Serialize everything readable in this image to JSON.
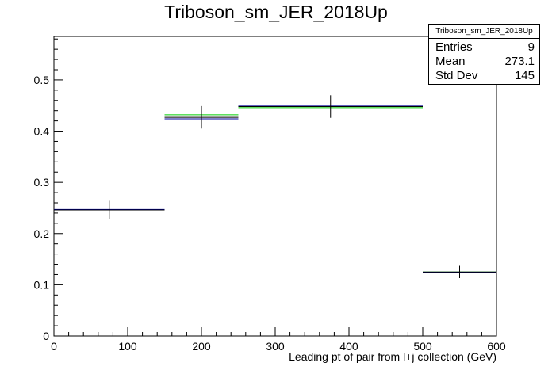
{
  "chart_data": {
    "type": "histogram",
    "title": "Triboson_sm_JER_2018Up",
    "xlabel": "Leading pt of pair from l+j collection (GeV)",
    "ylabel": "",
    "xlim": [
      0,
      600
    ],
    "ylim": [
      0,
      0.585
    ],
    "xticks": [
      0,
      100,
      200,
      300,
      400,
      500,
      600
    ],
    "yticks": [
      0,
      0.1,
      0.2,
      0.3,
      0.4,
      0.5
    ],
    "grid": false,
    "bins": [
      {
        "low": 0,
        "high": 150,
        "center": 75,
        "value": 0.246,
        "err": 0.018
      },
      {
        "low": 150,
        "high": 250,
        "center": 200,
        "value": 0.427,
        "err": 0.022
      },
      {
        "low": 250,
        "high": 500,
        "center": 375,
        "value": 0.448,
        "err": 0.022
      },
      {
        "low": 500,
        "high": 600,
        "center": 550,
        "value": 0.125,
        "err": 0.012
      }
    ],
    "variations": [
      {
        "color": "#00cc00",
        "values": [
          0.246,
          0.432,
          0.446,
          0.125
        ]
      },
      {
        "color": "#000099",
        "values": [
          0.247,
          0.424,
          0.449,
          0.124
        ]
      }
    ],
    "stats": {
      "name": "Triboson_sm_JER_2018Up",
      "rows": [
        {
          "label": "Entries",
          "value": "9"
        },
        {
          "label": "Mean",
          "value": "273.1"
        },
        {
          "label": "Std Dev",
          "value": "145"
        }
      ]
    },
    "colors": {
      "nominal": "#000000",
      "green": "#00cc00",
      "blue": "#000099"
    }
  }
}
